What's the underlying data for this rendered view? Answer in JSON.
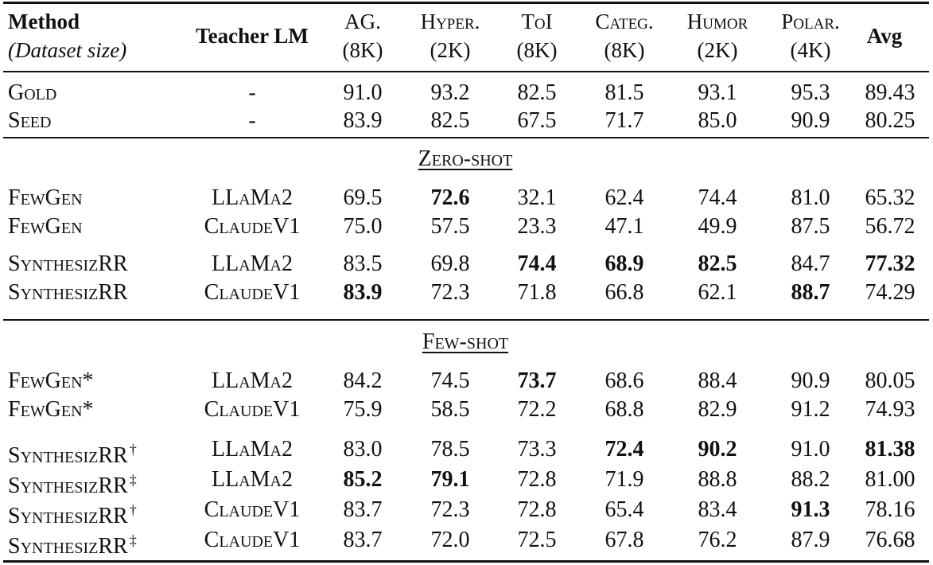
{
  "table": {
    "header": {
      "method": "Method",
      "dataset_size": "(Dataset size)",
      "teacher": "Teacher LM",
      "columns": [
        {
          "name": "AG.",
          "size": "(8K)"
        },
        {
          "name": "Hyper.",
          "size": "(2K)"
        },
        {
          "name": "ToI",
          "size": "(8K)"
        },
        {
          "name": "Categ.",
          "size": "(8K)"
        },
        {
          "name": "Humor",
          "size": "(2K)"
        },
        {
          "name": "Polar.",
          "size": "(4K)"
        }
      ],
      "avg": "Avg"
    },
    "baselines": [
      {
        "method": "Gold",
        "mark": "",
        "teacher": "-",
        "values": [
          "91.0",
          "93.2",
          "82.5",
          "81.5",
          "93.1",
          "95.3"
        ],
        "avg": "89.43",
        "bold": []
      },
      {
        "method": "Seed",
        "mark": "",
        "teacher": "-",
        "values": [
          "83.9",
          "82.5",
          "67.5",
          "71.7",
          "85.0",
          "90.9"
        ],
        "avg": "80.25",
        "bold": []
      }
    ],
    "sections": [
      {
        "title": "Zero-shot",
        "groups": [
          [
            {
              "method": "FewGen",
              "mark": "",
              "teacher": "LLaMa2",
              "values": [
                "69.5",
                "72.6",
                "32.1",
                "62.4",
                "74.4",
                "81.0"
              ],
              "avg": "65.32",
              "bold": [
                1
              ]
            },
            {
              "method": "FewGen",
              "mark": "",
              "teacher": "ClaudeV1",
              "values": [
                "75.0",
                "57.5",
                "23.3",
                "47.1",
                "49.9",
                "87.5"
              ],
              "avg": "56.72",
              "bold": []
            }
          ],
          [
            {
              "method": "SynthesizRR",
              "mark": "",
              "teacher": "LLaMa2",
              "values": [
                "83.5",
                "69.8",
                "74.4",
                "68.9",
                "82.5",
                "84.7"
              ],
              "avg": "77.32",
              "bold": [
                2,
                3,
                4,
                6
              ]
            },
            {
              "method": "SynthesizRR",
              "mark": "",
              "teacher": "ClaudeV1",
              "values": [
                "83.9",
                "72.3",
                "71.8",
                "66.8",
                "62.1",
                "88.7"
              ],
              "avg": "74.29",
              "bold": [
                0,
                5
              ]
            }
          ]
        ]
      },
      {
        "title": "Few-shot",
        "groups": [
          [
            {
              "method": "FewGen*",
              "mark": "",
              "teacher": "LLaMa2",
              "values": [
                "84.2",
                "74.5",
                "73.7",
                "68.6",
                "88.4",
                "90.9"
              ],
              "avg": "80.05",
              "bold": [
                2
              ]
            },
            {
              "method": "FewGen*",
              "mark": "",
              "teacher": "ClaudeV1",
              "values": [
                "75.9",
                "58.5",
                "72.2",
                "68.8",
                "82.9",
                "91.2"
              ],
              "avg": "74.93",
              "bold": []
            }
          ],
          [
            {
              "method": "SynthesizRR",
              "mark": "†",
              "teacher": "LLaMa2",
              "values": [
                "83.0",
                "78.5",
                "73.3",
                "72.4",
                "90.2",
                "91.0"
              ],
              "avg": "81.38",
              "bold": [
                3,
                4,
                6
              ]
            },
            {
              "method": "SynthesizRR",
              "mark": "‡",
              "teacher": "LLaMa2",
              "values": [
                "85.2",
                "79.1",
                "72.8",
                "71.9",
                "88.8",
                "88.2"
              ],
              "avg": "81.00",
              "bold": [
                0,
                1
              ]
            },
            {
              "method": "SynthesizRR",
              "mark": "†",
              "teacher": "ClaudeV1",
              "values": [
                "83.7",
                "72.3",
                "72.8",
                "65.4",
                "83.4",
                "91.3"
              ],
              "avg": "78.16",
              "bold": [
                5
              ]
            },
            {
              "method": "SynthesizRR",
              "mark": "‡",
              "teacher": "ClaudeV1",
              "values": [
                "83.7",
                "72.0",
                "72.5",
                "67.8",
                "76.2",
                "87.9"
              ],
              "avg": "76.68",
              "bold": []
            }
          ]
        ]
      }
    ]
  }
}
